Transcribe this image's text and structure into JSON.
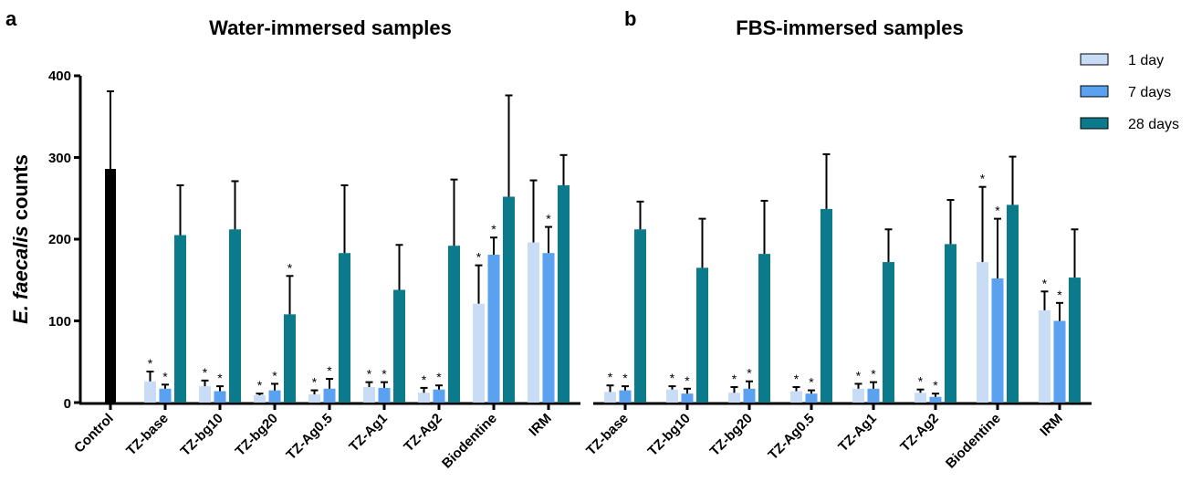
{
  "chart_data": [
    {
      "type": "bar",
      "panel_letter": "a",
      "title": "Water-immersed samples",
      "ylabel_italic": "E. faecalis",
      "ylabel_rest": "counts",
      "ylim": [
        0,
        400
      ],
      "yticks": [
        "0",
        "100",
        "200",
        "300",
        "400"
      ],
      "control": {
        "label": "Control",
        "value": 286,
        "error": 95,
        "color": "#000000"
      },
      "categories": [
        "TZ-base",
        "TZ-bg10",
        "TZ-bg20",
        "TZ-Ag0.5",
        "TZ-Ag1",
        "TZ-Ag2",
        "Biodentine",
        "IRM"
      ],
      "series": [
        {
          "name": "1 day",
          "values": [
            26,
            20,
            9,
            10,
            19,
            12,
            121,
            196
          ],
          "errors": [
            12,
            7,
            2,
            5,
            6,
            6,
            47,
            76
          ],
          "sig": [
            true,
            true,
            true,
            true,
            true,
            true,
            true,
            false
          ]
        },
        {
          "name": "7 days",
          "values": [
            17,
            14,
            15,
            17,
            18,
            16,
            181,
            183
          ],
          "errors": [
            5,
            6,
            8,
            12,
            7,
            5,
            21,
            32
          ],
          "sig": [
            true,
            true,
            true,
            true,
            true,
            true,
            true,
            true
          ]
        },
        {
          "name": "28 days",
          "values": [
            205,
            212,
            108,
            183,
            138,
            192,
            252,
            266
          ],
          "errors": [
            61,
            59,
            47,
            83,
            55,
            81,
            124,
            37
          ],
          "sig": [
            false,
            false,
            true,
            false,
            false,
            false,
            false,
            false
          ]
        }
      ],
      "sig_marker": "*"
    },
    {
      "type": "bar",
      "panel_letter": "b",
      "title": "FBS-immersed samples",
      "ylim": [
        0,
        400
      ],
      "categories": [
        "TZ-base",
        "TZ-bg10",
        "TZ-bg20",
        "TZ-Ag0.5",
        "TZ-Ag1",
        "TZ-Ag2",
        "Biodentine",
        "IRM"
      ],
      "series": [
        {
          "name": "1 day",
          "values": [
            13,
            16,
            12,
            14,
            17,
            12,
            172,
            113
          ],
          "errors": [
            8,
            4,
            7,
            5,
            6,
            4,
            92,
            23
          ],
          "sig": [
            true,
            true,
            true,
            true,
            true,
            true,
            true,
            true
          ]
        },
        {
          "name": "7 days",
          "values": [
            15,
            11,
            17,
            11,
            17,
            7,
            152,
            100
          ],
          "errors": [
            5,
            6,
            9,
            4,
            8,
            4,
            73,
            22
          ],
          "sig": [
            true,
            true,
            true,
            true,
            true,
            true,
            true,
            true
          ]
        },
        {
          "name": "28 days",
          "values": [
            212,
            165,
            182,
            237,
            172,
            194,
            242,
            153
          ],
          "errors": [
            34,
            60,
            65,
            67,
            40,
            54,
            59,
            59
          ],
          "sig": [
            false,
            false,
            false,
            false,
            false,
            false,
            false,
            false
          ]
        }
      ],
      "sig_marker": "*"
    }
  ],
  "legend": [
    {
      "label": "1 day",
      "color": "#c9dcf5"
    },
    {
      "label": "7 days",
      "color": "#5aa1f0"
    },
    {
      "label": "28 days",
      "color": "#0b7b8c"
    }
  ],
  "colors": {
    "control": "#000000",
    "axis": "#000000",
    "error_bar": "#000000"
  }
}
